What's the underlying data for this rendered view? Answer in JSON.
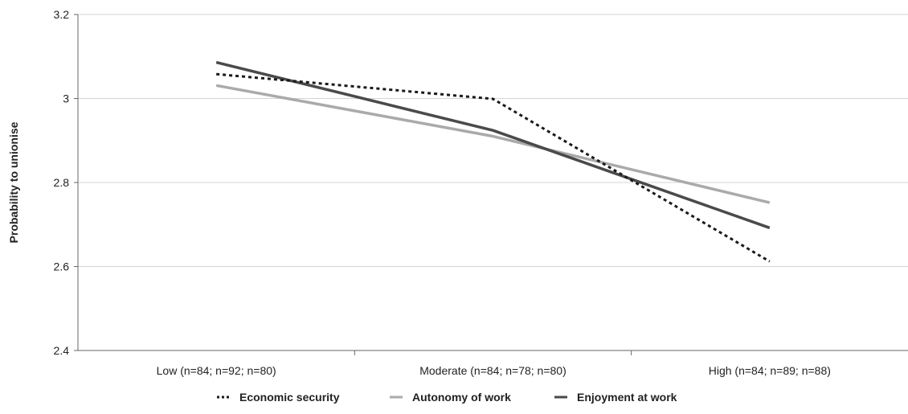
{
  "chart_data": {
    "type": "line",
    "title": "",
    "xlabel": "",
    "ylabel": "Probability to unionise",
    "categories": [
      "Low (n=84; n=92; n=80)",
      "Moderate (n=84; n=78; n=80)",
      "High (n=84; n=89; n=88)"
    ],
    "ylim": [
      2.4,
      3.2
    ],
    "yticks": [
      2.4,
      2.6,
      2.8,
      3,
      3.2
    ],
    "ytick_labels": [
      "2.4",
      "2.6",
      "2.8",
      "3",
      "3.2"
    ],
    "grid": true,
    "legend_position": "bottom",
    "series": [
      {
        "name": "Economic security",
        "values": [
          3.058,
          2.999,
          2.612
        ],
        "color": "#1a1a1a",
        "style": "dotted"
      },
      {
        "name": "Autonomy of work",
        "values": [
          3.031,
          2.91,
          2.752
        ],
        "color": "#aaaaaa",
        "style": "solid"
      },
      {
        "name": "Enjoyment at work",
        "values": [
          3.086,
          2.924,
          2.692
        ],
        "color": "#4a4a4a",
        "style": "solid"
      }
    ]
  }
}
